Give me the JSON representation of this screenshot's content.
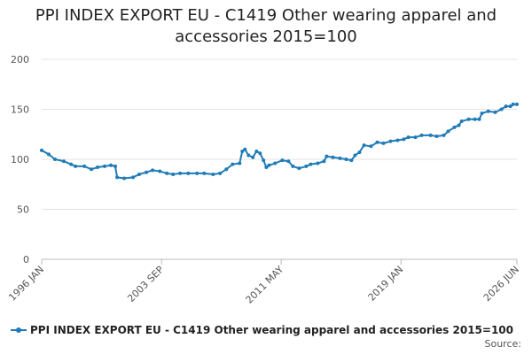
{
  "chart_data": {
    "type": "line",
    "title": "PPI INDEX EXPORT EU - C1419 Other wearing apparel and accessories 2015=100",
    "source": "Source:",
    "x": [
      1996.0,
      1996.45,
      1996.85,
      1997.42,
      1997.88,
      1998.16,
      1998.73,
      1999.18,
      1999.58,
      2000.03,
      2000.43,
      2000.71,
      2000.83,
      2001.28,
      2001.85,
      2002.24,
      2002.7,
      2003.1,
      2003.56,
      2004.01,
      2004.41,
      2004.86,
      2005.38,
      2005.94,
      2006.4,
      2006.97,
      2007.42,
      2007.82,
      2008.22,
      2008.67,
      2008.84,
      2009.01,
      2009.24,
      2009.52,
      2009.75,
      2009.98,
      2010.2,
      2010.38,
      2010.55,
      2010.94,
      2011.4,
      2011.8,
      2012.08,
      2012.48,
      2012.93,
      2013.22,
      2013.67,
      2014.07,
      2014.24,
      2014.64,
      2015.09,
      2015.49,
      2015.83,
      2016.06,
      2016.34,
      2016.63,
      2017.08,
      2017.48,
      2017.88,
      2018.33,
      2018.78,
      2019.18,
      2019.47,
      2019.92,
      2020.32,
      2020.89,
      2021.28,
      2021.74,
      2022.02,
      2022.42,
      2022.7,
      2022.88,
      2023.33,
      2023.73,
      2024.01,
      2024.18,
      2024.58,
      2025.03,
      2025.43,
      2025.72,
      2026.0,
      2026.17,
      2026.42
    ],
    "series": [
      {
        "name": "PPI INDEX EXPORT EU - C1419 Other wearing apparel and accessories 2015=100",
        "color": "#1f7bb6",
        "values": [
          109,
          105,
          100,
          98,
          95,
          93,
          93,
          90,
          92,
          93,
          94,
          93,
          82,
          81,
          82,
          85,
          87,
          89,
          88,
          86,
          85,
          86,
          86,
          86,
          86,
          85,
          86,
          90,
          95,
          96,
          108,
          110,
          104,
          102,
          108,
          106,
          99,
          92,
          94,
          96,
          99,
          98,
          93,
          91,
          93,
          95,
          96,
          98,
          103,
          102,
          101,
          100,
          99,
          104,
          107,
          114,
          113,
          117,
          116,
          118,
          119,
          120,
          122,
          122,
          124,
          124,
          123,
          124,
          128,
          132,
          134,
          138,
          140,
          140,
          140,
          146,
          148,
          147,
          150,
          153,
          153,
          155,
          155
        ]
      }
    ],
    "xlim": [
      1996.0,
      2026.42
    ],
    "xticks": [
      {
        "value": 1996.0,
        "label": "1996 JAN"
      },
      {
        "value": 2003.67,
        "label": "2003 SEP"
      },
      {
        "value": 2011.33,
        "label": "2011 MAY"
      },
      {
        "value": 2019.0,
        "label": "2019 JAN"
      },
      {
        "value": 2026.42,
        "label": "2026 JUN"
      }
    ],
    "ylim": [
      0,
      200
    ],
    "yticks": [
      0,
      50,
      100,
      150,
      200
    ],
    "grid": true,
    "legend": "bottom"
  }
}
